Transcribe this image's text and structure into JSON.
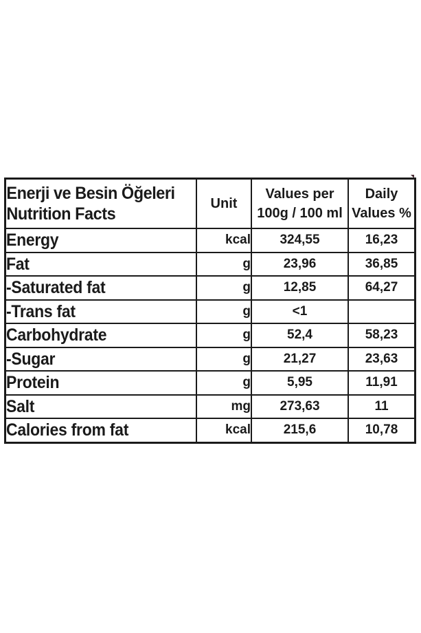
{
  "header": {
    "name_line1": "Enerji ve Besin Öğeleri",
    "name_line2": "Nutrition Facts",
    "unit": "Unit",
    "values_line1": "Values per",
    "values_line2": "100g / 100 ml",
    "daily_line1": "Daily",
    "daily_line2": "Values %"
  },
  "rows": [
    {
      "name": "Energy",
      "unit": "kcal",
      "value": "324,55",
      "daily": "16,23"
    },
    {
      "name": "Fat",
      "unit": "g",
      "value": "23,96",
      "daily": "36,85"
    },
    {
      "name": "-Saturated fat",
      "unit": "g",
      "value": "12,85",
      "daily": "64,27"
    },
    {
      "name": "-Trans fat",
      "unit": "g",
      "value": "<1",
      "daily": ""
    },
    {
      "name": "Carbohydrate",
      "unit": "g",
      "value": "52,4",
      "daily": "58,23"
    },
    {
      "name": "-Sugar",
      "unit": "g",
      "value": "21,27",
      "daily": "23,63"
    },
    {
      "name": "Protein",
      "unit": "g",
      "value": "5,95",
      "daily": "11,91"
    },
    {
      "name": "Salt",
      "unit": "mg",
      "value": "273,63",
      "daily": "11"
    },
    {
      "name": "Calories from fat",
      "unit": "kcal",
      "value": "215,6",
      "daily": "10,78"
    }
  ]
}
